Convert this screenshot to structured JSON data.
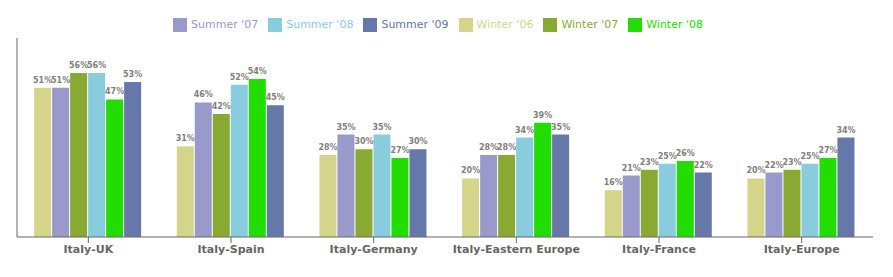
{
  "chart_data": {
    "type": "bar",
    "categories": [
      "Italy-UK",
      "Italy-Spain",
      "Italy-Germany",
      "Italy-Eastern Europe",
      "Italy-France",
      "Italy-Europe"
    ],
    "series": [
      {
        "name": "Winter '06",
        "color": "#d4d48a",
        "values": [
          51,
          31,
          28,
          20,
          16,
          20
        ],
        "value_labels": [
          "51%",
          "31%",
          "28%",
          "20%",
          "16%",
          "20%"
        ]
      },
      {
        "name": "Summer '07",
        "color": "#9999cc",
        "values": [
          51,
          46,
          35,
          28,
          21,
          22
        ],
        "value_labels": [
          "51%",
          "46%",
          "35%",
          "28%",
          "21%",
          "22%"
        ]
      },
      {
        "name": "Winter '07",
        "color": "#88aa33",
        "values": [
          56,
          42,
          30,
          28,
          23,
          23
        ],
        "value_labels": [
          "56%",
          "42%",
          "30%",
          "28%",
          "23%",
          "23%"
        ]
      },
      {
        "name": "Summer '08",
        "color": "#88ccdd",
        "values": [
          56,
          52,
          35,
          34,
          25,
          25
        ],
        "value_labels": [
          "56%",
          "52%",
          "35%",
          "34%",
          "25%",
          "25%"
        ]
      },
      {
        "name": "Winter '08",
        "color": "#22dd00",
        "values": [
          47,
          54,
          27,
          39,
          26,
          27
        ],
        "value_labels": [
          "47%",
          "54%",
          "27%",
          "39%",
          "26%",
          "27%"
        ]
      },
      {
        "name": "Summer '09",
        "color": "#6677aa",
        "values": [
          53,
          45,
          30,
          35,
          22,
          34
        ],
        "value_labels": [
          "53%",
          "45%",
          "30%",
          "35%",
          "22%",
          "34%"
        ]
      }
    ],
    "ylim": [
      0,
      68
    ],
    "legend": "top",
    "data_labels": true,
    "tick_labels": "x",
    "grid": false
  }
}
